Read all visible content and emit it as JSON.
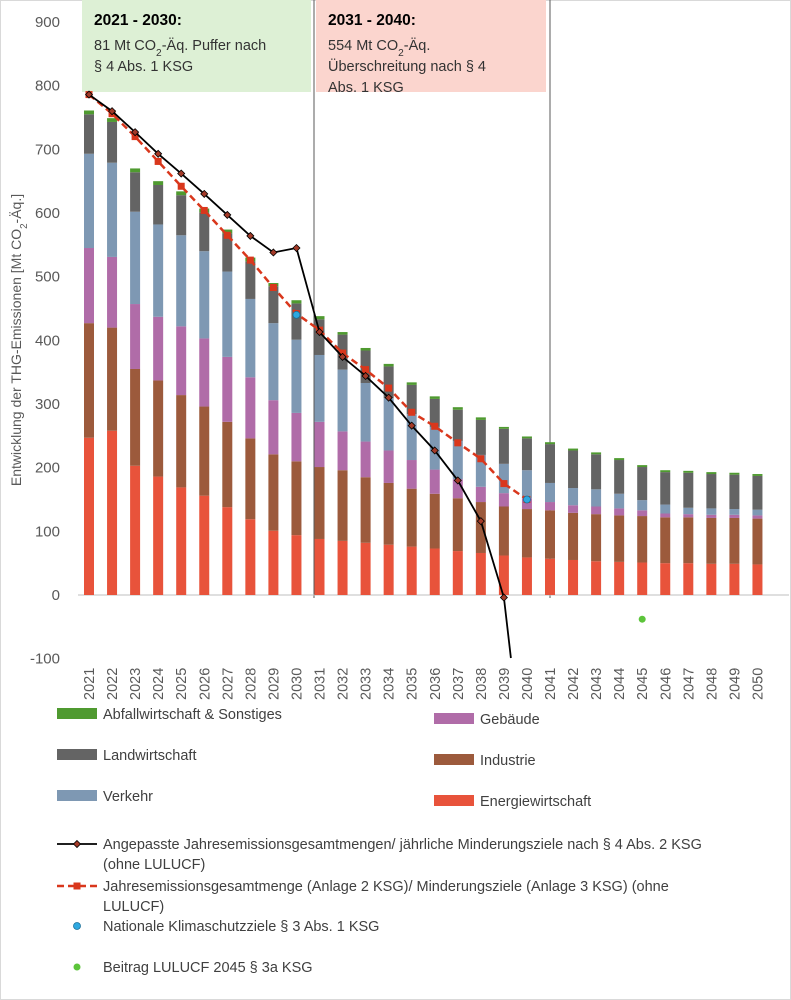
{
  "chart_data": {
    "type": "bar",
    "stacked": true,
    "ylabel_parts": [
      "Entwicklung der THG-Emissionen [Mt CO",
      "2",
      "-Äq.]"
    ],
    "ylim": [
      -100,
      900
    ],
    "yticks": [
      -100,
      0,
      100,
      200,
      300,
      400,
      500,
      600,
      700,
      800,
      900
    ],
    "categories": [
      "2021",
      "2022",
      "2023",
      "2024",
      "2025",
      "2026",
      "2027",
      "2028",
      "2029",
      "2030",
      "2031",
      "2032",
      "2033",
      "2034",
      "2035",
      "2036",
      "2037",
      "2038",
      "2039",
      "2040",
      "2041",
      "2042",
      "2043",
      "2044",
      "2045",
      "2046",
      "2047",
      "2048",
      "2049",
      "2050"
    ],
    "series": [
      {
        "name": "Energiewirtschaft",
        "color": "#e8533b",
        "values": [
          247,
          258,
          203,
          186,
          169,
          156,
          138,
          119,
          101,
          94,
          88,
          85,
          82,
          79,
          76,
          73,
          69,
          66,
          62,
          59,
          57,
          55,
          53,
          52,
          51,
          50,
          50,
          49,
          49,
          48
        ]
      },
      {
        "name": "Industrie",
        "color": "#9c5a3c",
        "values": [
          180,
          162,
          152,
          151,
          145,
          140,
          134,
          127,
          120,
          116,
          113,
          111,
          103,
          97,
          91,
          86,
          83,
          80,
          77,
          76,
          76,
          74,
          74,
          73,
          73,
          72,
          72,
          72,
          72,
          72
        ]
      },
      {
        "name": "Gebäude",
        "color": "#b06ca8",
        "values": [
          118,
          111,
          102,
          100,
          108,
          107,
          102,
          96,
          85,
          76,
          71,
          61,
          56,
          51,
          45,
          38,
          30,
          24,
          21,
          17,
          13,
          12,
          12,
          11,
          9,
          6,
          5,
          5,
          5,
          5
        ]
      },
      {
        "name": "Verkehr",
        "color": "#7e98b3",
        "values": [
          148,
          148,
          145,
          145,
          143,
          137,
          134,
          123,
          121,
          115,
          105,
          97,
          92,
          82,
          72,
          67,
          60,
          50,
          46,
          44,
          30,
          27,
          27,
          23,
          16,
          14,
          10,
          10,
          9,
          9
        ]
      },
      {
        "name": "Landwirtschaft",
        "color": "#646464",
        "values": [
          62,
          64,
          62,
          62,
          63,
          61,
          60,
          59,
          58,
          57,
          56,
          55,
          51,
          50,
          46,
          44,
          49,
          55,
          55,
          50,
          61,
          59,
          55,
          53,
          52,
          51,
          55,
          54,
          54,
          53
        ]
      },
      {
        "name": "Abfallwirtschaft & Sonstiges",
        "color": "#4f9a30",
        "values": [
          6,
          6,
          6,
          6,
          6,
          6,
          6,
          6,
          5,
          5,
          5,
          4,
          4,
          4,
          4,
          4,
          4,
          4,
          3,
          3,
          3,
          3,
          3,
          3,
          3,
          3,
          3,
          3,
          3,
          3
        ]
      }
    ],
    "lines": [
      {
        "name": "Angepasste Jahresemissionsgesamtmengen/ jährliche Minderungsziele nach § 4 Abs. 2 KSG (ohne LULUCF)",
        "color": "#000000",
        "x": [
          "2021",
          "2022",
          "2023",
          "2024",
          "2025",
          "2026",
          "2027",
          "2028",
          "2029",
          "2030",
          "2031",
          "2032",
          "2033",
          "2034",
          "2035",
          "2036",
          "2037",
          "2038",
          "2039"
        ],
        "values": [
          786,
          760,
          727,
          693,
          662,
          630,
          597,
          564,
          538,
          545,
          413,
          374,
          344,
          310,
          266,
          227,
          180,
          116,
          -4
        ],
        "continues_below_axis": true
      },
      {
        "name": "Jahresemissionsgesamtmenge (Anlage 2 KSG)/ Minderungsziele (Anlage 3 KSG) (ohne LULUCF)",
        "color": "#d9371c",
        "x": [
          "2021",
          "2022",
          "2023",
          "2024",
          "2025",
          "2026",
          "2027",
          "2028",
          "2029",
          "2030",
          "2031",
          "2032",
          "2033",
          "2034",
          "2035",
          "2036",
          "2037",
          "2038",
          "2039",
          "2040"
        ],
        "values": [
          786,
          756,
          720,
          681,
          642,
          604,
          565,
          526,
          483,
          442,
          416,
          380,
          354,
          325,
          287,
          265,
          239,
          214,
          175,
          150
        ]
      }
    ],
    "points": [
      {
        "name": "Nationale Klimaschutzziele  § 3 Abs. 1 KSG",
        "color": "#2ea8e0",
        "x": [
          "2030",
          "2040"
        ],
        "values": [
          440,
          150
        ]
      },
      {
        "name": "Beitrag LULUCF 2045 § 3a KSG",
        "color": "#5cc43a",
        "x": [
          "2045"
        ],
        "values": [
          -38
        ]
      }
    ],
    "periods": [
      {
        "from": "2021",
        "to": "2030",
        "fill": "#ddf0d5",
        "title": "2021 - 2030:",
        "lines": [
          [
            "81 Mt CO",
            "2",
            "-Äq. Puffer nach"
          ],
          [
            "§ 4 Abs. 1 KSG"
          ]
        ]
      },
      {
        "from": "2031",
        "to": "2040",
        "fill": "#fbd5ce",
        "title": "2031 - 2040:",
        "lines": [
          [
            "554 Mt CO",
            "2",
            "-Äq."
          ],
          [
            "Überschreitung nach § 4"
          ],
          [
            "Abs. 1 KSG"
          ]
        ]
      }
    ],
    "legend": {
      "bars_left": [
        "Abfallwirtschaft & Sonstiges",
        "Landwirtschaft",
        "Verkehr"
      ],
      "bars_right": [
        "Gebäude",
        "Industrie",
        "Energiewirtschaft"
      ],
      "line1_text": [
        "Angepasste Jahresemissionsgesamtmengen/ jährliche Minderungsziele nach § 4 Abs. 2 KSG",
        "(ohne LULUCF)"
      ],
      "line2_text": [
        "Jahresemissionsgesamtmenge (Anlage 2 KSG)/ Minderungsziele (Anlage 3 KSG) (ohne",
        "LULUCF)"
      ],
      "point1_text": "Nationale Klimaschutzziele  § 3 Abs. 1 KSG",
      "point2_text": "Beitrag LULUCF 2045 § 3a KSG"
    }
  }
}
